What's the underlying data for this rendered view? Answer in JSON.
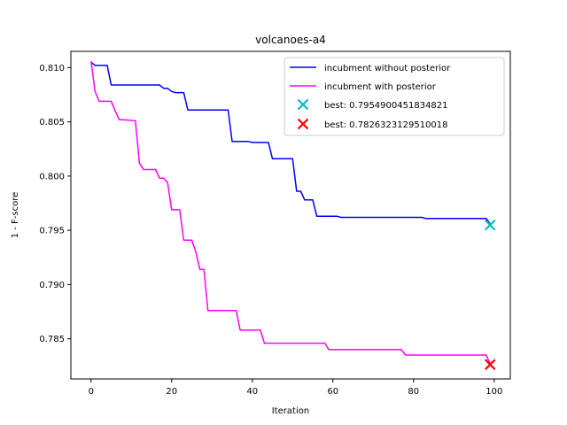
{
  "chart_data": {
    "type": "line",
    "title": "volcanoes-a4",
    "xlabel": "Iteration",
    "ylabel": "1 - F-score",
    "xlim": [
      -5,
      104
    ],
    "ylim": [
      0.7813,
      0.8115
    ],
    "xticks": [
      0,
      20,
      40,
      60,
      80,
      100
    ],
    "yticks": [
      0.785,
      0.79,
      0.795,
      0.8,
      0.805,
      0.81
    ],
    "ytick_labels": [
      "0.785",
      "0.790",
      "0.795",
      "0.800",
      "0.805",
      "0.810"
    ],
    "legend_position": "top-right",
    "grid": false,
    "series": [
      {
        "name": "incubment without posterior",
        "color": "#0000ff",
        "x": [
          0,
          1,
          4,
          5,
          17,
          18,
          19,
          20,
          21,
          23,
          24,
          34,
          35,
          39,
          40,
          44,
          45,
          50,
          51,
          52,
          53,
          55,
          56,
          61,
          62,
          82,
          83,
          98,
          99
        ],
        "y": [
          0.8105,
          0.8102,
          0.8102,
          0.8084,
          0.8084,
          0.8081,
          0.8081,
          0.8078,
          0.8077,
          0.8077,
          0.8061,
          0.8061,
          0.8032,
          0.8032,
          0.8031,
          0.8031,
          0.8016,
          0.8016,
          0.7986,
          0.7986,
          0.7978,
          0.7978,
          0.7963,
          0.7963,
          0.7962,
          0.7962,
          0.7961,
          0.7961,
          0.7956
        ]
      },
      {
        "name": "incubment with posterior",
        "color": "#ff00ff",
        "x": [
          0,
          1,
          2,
          5,
          6,
          7,
          8,
          11,
          12,
          13,
          16,
          17,
          18,
          19,
          20,
          21,
          22,
          23,
          25,
          26,
          27,
          28,
          29,
          36,
          37,
          42,
          43,
          58,
          59,
          77,
          78,
          98,
          99
        ],
        "y": [
          0.8106,
          0.8078,
          0.8069,
          0.8069,
          0.806,
          0.8052,
          0.8052,
          0.8051,
          0.8012,
          0.8006,
          0.8006,
          0.7998,
          0.7998,
          0.7994,
          0.7969,
          0.7969,
          0.7969,
          0.7941,
          0.7941,
          0.793,
          0.7914,
          0.7914,
          0.7876,
          0.7876,
          0.7858,
          0.7858,
          0.7846,
          0.7846,
          0.784,
          0.784,
          0.7835,
          0.7835,
          0.7827
        ]
      }
    ],
    "markers": [
      {
        "name": "best: 0.7954900451834821",
        "x": 99,
        "y": 0.7954900451834821,
        "color": "#00bfbf",
        "symbol": "x"
      },
      {
        "name": "best: 0.7826323129510018",
        "x": 99,
        "y": 0.7826323129510018,
        "color": "#ff0000",
        "symbol": "x"
      }
    ]
  }
}
